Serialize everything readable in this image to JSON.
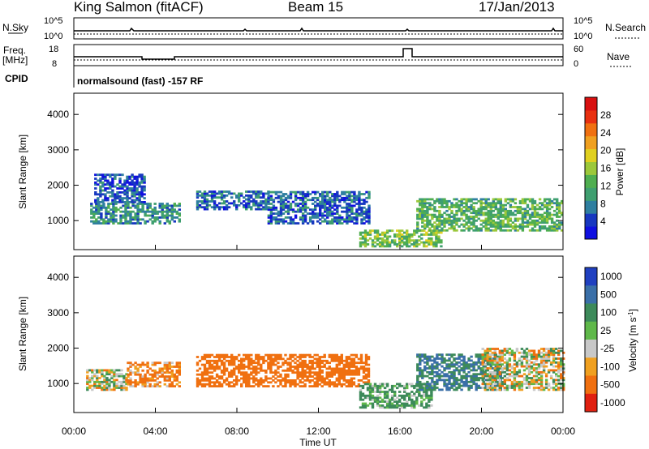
{
  "header": {
    "title": "King Salmon (fitACF)",
    "beam": "Beam 15",
    "date": "17/Jan/2013"
  },
  "summary": {
    "left_label_nsky": "N.Sky",
    "left_label_freq_1": "Freq.",
    "left_label_freq_2": "[MHz]",
    "left_label_cpid": "CPID",
    "right_label_nsearch": "N.Search",
    "right_label_nave": "Nave",
    "left_ticks_top": [
      "10^5",
      "10^0"
    ],
    "right_ticks_top": [
      "10^5",
      "10^0"
    ],
    "left_ticks_freq": [
      "18",
      "8"
    ],
    "right_ticks_nave": [
      "60",
      "0"
    ],
    "cpid_text": "normalsound (fast) -157 RF"
  },
  "axes": {
    "x_label": "Time UT",
    "x_ticks": [
      "00:00",
      "04:00",
      "08:00",
      "12:00",
      "16:00",
      "20:00",
      "00:00"
    ],
    "y_label": "Slant Range [km]",
    "y_ticks": [
      "4000",
      "3000",
      "2000",
      "1000"
    ]
  },
  "colorbars": {
    "power_label": "Power [dB]",
    "power_ticks": [
      "28",
      "24",
      "20",
      "16",
      "12",
      "8",
      "4"
    ],
    "velocity_label": "Velocity [m s",
    "velocity_sup": "-1",
    "velocity_label_end": "]",
    "velocity_ticks": [
      "1000",
      "500",
      "100",
      "25",
      "-25",
      "-100",
      "-500",
      "-1000"
    ]
  },
  "chart_data": [
    {
      "type": "heatmap",
      "title": "Power",
      "xlabel": "Time UT",
      "ylabel": "Slant Range [km]",
      "xlim": [
        0,
        24
      ],
      "ylim": [
        180,
        4600
      ],
      "colorbar_label": "Power [dB]",
      "colorbar_range": [
        0,
        32
      ],
      "colors": [
        "#1010e0",
        "#1838c0",
        "#2f7fa0",
        "#3f9f70",
        "#4fae50",
        "#9cc83a",
        "#e0d020",
        "#f0a020",
        "#f07010",
        "#e83010",
        "#d81010"
      ],
      "regions": [
        {
          "t": [
            0.8,
            5.2
          ],
          "r": [
            900,
            1500
          ],
          "level": 8
        },
        {
          "t": [
            1.0,
            3.5
          ],
          "r": [
            1500,
            2300
          ],
          "level": 4
        },
        {
          "t": [
            6.0,
            9.5
          ],
          "r": [
            1300,
            1800
          ],
          "level": 5
        },
        {
          "t": [
            9.5,
            14.5
          ],
          "r": [
            900,
            1800
          ],
          "level": 5
        },
        {
          "t": [
            14.0,
            18.0
          ],
          "r": [
            250,
            700
          ],
          "level": 14
        },
        {
          "t": [
            16.8,
            24.0
          ],
          "r": [
            700,
            1600
          ],
          "level": 12
        }
      ]
    },
    {
      "type": "heatmap",
      "title": "Velocity",
      "xlabel": "Time UT",
      "ylabel": "Slant Range [km]",
      "xlim": [
        0,
        24
      ],
      "ylim": [
        180,
        4600
      ],
      "colorbar_label": "Velocity [m s-1]",
      "colorbar_ticks": [
        1000,
        500,
        100,
        25,
        -25,
        -100,
        -500,
        -1000
      ],
      "colors": [
        "#2040c0",
        "#3a6fa8",
        "#3d8a5a",
        "#5fb84a",
        "#c8c8c8",
        "#f0a020",
        "#f07010",
        "#e02010"
      ],
      "regions": [
        {
          "t": [
            0.6,
            2.6
          ],
          "r": [
            800,
            1400
          ],
          "velocity": 0
        },
        {
          "t": [
            2.6,
            5.2
          ],
          "r": [
            900,
            1600
          ],
          "velocity": -100
        },
        {
          "t": [
            6.0,
            14.5
          ],
          "r": [
            900,
            1800
          ],
          "velocity": -200
        },
        {
          "t": [
            14.0,
            17.5
          ],
          "r": [
            300,
            1000
          ],
          "velocity": 100
        },
        {
          "t": [
            16.8,
            21.0
          ],
          "r": [
            800,
            1800
          ],
          "velocity": 300
        },
        {
          "t": [
            20.0,
            24.0
          ],
          "r": [
            800,
            2000
          ],
          "velocity": 0
        }
      ]
    }
  ]
}
